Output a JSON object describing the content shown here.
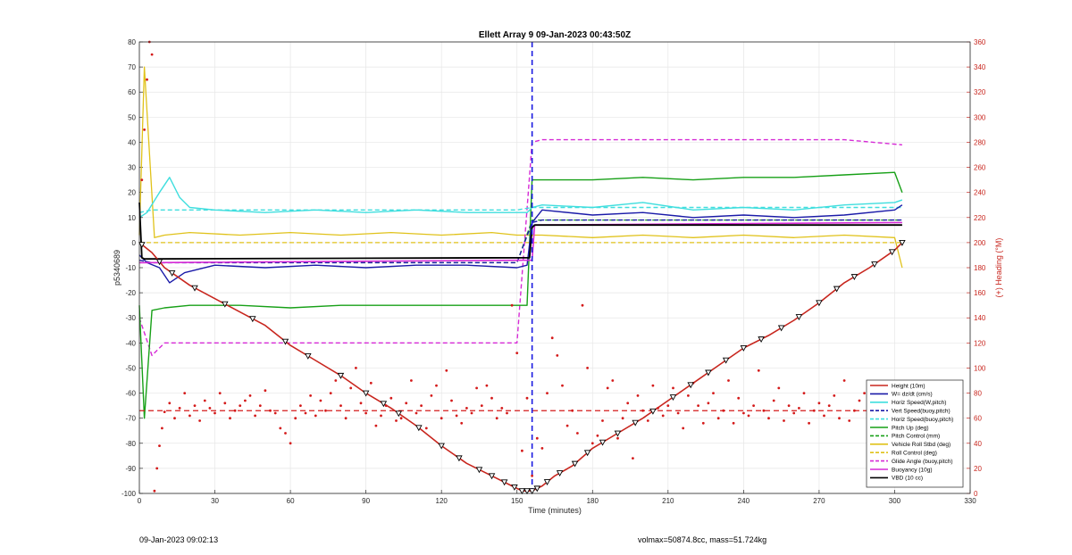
{
  "chart_data": {
    "type": "line",
    "title": "Ellett Array 9 09-Jan-2023 00:43:50Z",
    "xlabel": "Time (minutes)",
    "ylabel": "p5340689",
    "y2label": "(+) Heading (°M)",
    "xlim": [
      0,
      330
    ],
    "ylim": [
      -100,
      80
    ],
    "y2lim": [
      0,
      360
    ],
    "xticks": [
      0,
      30,
      60,
      90,
      120,
      150,
      180,
      210,
      240,
      270,
      300,
      330
    ],
    "yticks": [
      -100,
      -90,
      -80,
      -70,
      -60,
      -50,
      -40,
      -30,
      -20,
      -10,
      0,
      10,
      20,
      30,
      40,
      50,
      60,
      70,
      80
    ],
    "y2ticks": [
      0,
      20,
      40,
      60,
      80,
      100,
      120,
      140,
      160,
      180,
      200,
      220,
      240,
      260,
      280,
      300,
      320,
      340,
      360
    ],
    "grid": true,
    "legend_position": "bottom-right",
    "dive_climb_marker_x": 156,
    "heading_mean_line": 66,
    "colors": {
      "height": "#c8261e",
      "wdzdt": "#1a1aa8",
      "horiz_w": "#3fdede",
      "vert_buoy": "#1a1aa8",
      "horiz_buoy": "#3fdede",
      "pitch": "#17a017",
      "pitch_ctrl": "#17a017",
      "roll": "#e0c21a",
      "roll_ctrl": "#e0c21a",
      "glide": "#d62ad6",
      "buoyancy": "#d62ad6",
      "vbd": "#000000",
      "heading": "#d41a1a",
      "marker": "#1a1ae0"
    },
    "series": [
      {
        "name": "Height (10m)",
        "style": "solid",
        "x": [
          0,
          5,
          10,
          20,
          35,
          50,
          60,
          70,
          80,
          90,
          100,
          110,
          120,
          130,
          140,
          148,
          152,
          156,
          160,
          165,
          172,
          180,
          190,
          200,
          210,
          220,
          230,
          240,
          250,
          260,
          270,
          280,
          290,
          300,
          303
        ],
        "values": [
          0,
          -4,
          -10,
          -17,
          -25,
          -33,
          -41,
          -47,
          -53,
          -60,
          -66,
          -73,
          -81,
          -88,
          -93,
          -97,
          -99,
          -99,
          -97,
          -93,
          -89,
          -82,
          -76,
          -70,
          -63,
          -56,
          -49,
          -42,
          -37,
          -31,
          -24,
          -16,
          -10,
          -3,
          0
        ]
      },
      {
        "name": "W= dz/dt (cm/s)",
        "style": "solid",
        "x": [
          0,
          3,
          8,
          12,
          18,
          30,
          50,
          70,
          90,
          110,
          130,
          150,
          154,
          156,
          160,
          180,
          200,
          220,
          240,
          260,
          280,
          300,
          303
        ],
        "values": [
          -5,
          -8,
          -10,
          -16,
          -12,
          -9,
          -10,
          -9,
          -10,
          -9,
          -9,
          -10,
          -9,
          8,
          13,
          11,
          12,
          10,
          11,
          10,
          11,
          13,
          15
        ]
      },
      {
        "name": "Horiz Speed(W,pitch)",
        "style": "solid",
        "x": [
          0,
          3,
          8,
          12,
          16,
          20,
          30,
          50,
          70,
          90,
          110,
          130,
          150,
          154,
          156,
          160,
          180,
          200,
          220,
          240,
          260,
          280,
          300,
          303
        ],
        "values": [
          10,
          12,
          20,
          26,
          18,
          14,
          13,
          12,
          13,
          12,
          13,
          12,
          12,
          12,
          14,
          15,
          14,
          16,
          13,
          14,
          13,
          15,
          16,
          17
        ]
      },
      {
        "name": "Vert Speed(buoy,pitch)",
        "style": "dashed",
        "x": [
          0,
          5,
          30,
          60,
          90,
          120,
          150,
          156,
          160,
          200,
          240,
          280,
          303
        ],
        "values": [
          -7,
          -8,
          -8,
          -8,
          -8,
          -8,
          -8,
          8,
          9,
          9,
          9,
          9,
          9
        ]
      },
      {
        "name": "Horiz Speed(buoy,pitch)",
        "style": "dashed",
        "x": [
          0,
          5,
          30,
          60,
          90,
          120,
          150,
          156,
          160,
          200,
          240,
          280,
          303
        ],
        "values": [
          12,
          13,
          13,
          13,
          13,
          13,
          13,
          14,
          14,
          14,
          14,
          14,
          14
        ]
      },
      {
        "name": "Pitch Up (deg)",
        "style": "solid",
        "x": [
          0,
          2,
          5,
          10,
          20,
          40,
          60,
          80,
          100,
          120,
          140,
          150,
          154,
          156,
          160,
          180,
          200,
          220,
          240,
          260,
          280,
          300,
          303
        ],
        "values": [
          -25,
          -70,
          -27,
          -26,
          -25,
          -25,
          -26,
          -25,
          -25,
          -25,
          -25,
          -25,
          -25,
          25,
          25,
          25,
          26,
          25,
          26,
          26,
          27,
          28,
          20
        ]
      },
      {
        "name": "Pitch Control (mm)",
        "style": "dashed",
        "x": [
          0,
          5,
          30,
          60,
          90,
          120,
          150,
          156,
          160,
          200,
          240,
          280,
          303
        ],
        "values": [
          -8,
          -8,
          -8,
          -8,
          -8,
          -8,
          -8,
          9,
          9,
          9,
          9,
          9,
          9
        ]
      },
      {
        "name": "Vehicle Roll Stbd (deg)",
        "style": "solid",
        "x": [
          0,
          2,
          6,
          10,
          20,
          40,
          60,
          80,
          100,
          120,
          140,
          150,
          156,
          160,
          180,
          200,
          220,
          240,
          260,
          280,
          300,
          303
        ],
        "values": [
          3,
          70,
          2,
          3,
          4,
          3,
          4,
          3,
          4,
          3,
          4,
          3,
          3,
          3,
          2,
          3,
          2,
          3,
          2,
          3,
          2,
          -10
        ]
      },
      {
        "name": "Roll Control (deg)",
        "style": "dashed",
        "x": [
          0,
          5,
          30,
          60,
          90,
          120,
          150,
          156,
          160,
          200,
          240,
          280,
          303
        ],
        "values": [
          0,
          0,
          0,
          0,
          0,
          0,
          0,
          0,
          0,
          0,
          0,
          0,
          0
        ]
      },
      {
        "name": "Glide Angle (buoy,pitch)",
        "style": "dashed",
        "x": [
          0,
          5,
          10,
          30,
          60,
          90,
          120,
          150,
          156,
          160,
          200,
          240,
          280,
          303
        ],
        "values": [
          -30,
          -45,
          -40,
          -40,
          -40,
          -40,
          -40,
          -40,
          40,
          41,
          41,
          41,
          41,
          39
        ]
      },
      {
        "name": "Buoyancy (10g)",
        "style": "solid",
        "x": [
          0,
          156,
          157,
          303
        ],
        "values": [
          -8,
          -7,
          7,
          8
        ]
      },
      {
        "name": "VBD (10 cc)",
        "style": "solid",
        "x": [
          0,
          1,
          2,
          155,
          156,
          157,
          303
        ],
        "values": [
          16,
          -6,
          -6.5,
          -6,
          6,
          7,
          7
        ]
      }
    ],
    "heading_points": {
      "name": "Heading",
      "x": [
        1,
        2,
        3,
        4,
        5,
        6,
        7,
        8,
        9,
        10,
        12,
        14,
        16,
        18,
        20,
        22,
        24,
        26,
        28,
        30,
        32,
        34,
        36,
        38,
        40,
        42,
        44,
        46,
        48,
        50,
        52,
        54,
        56,
        58,
        60,
        62,
        64,
        66,
        68,
        70,
        72,
        74,
        76,
        78,
        80,
        82,
        84,
        86,
        88,
        90,
        92,
        94,
        96,
        98,
        100,
        102,
        104,
        106,
        108,
        110,
        112,
        114,
        116,
        118,
        120,
        122,
        124,
        126,
        128,
        130,
        132,
        134,
        136,
        138,
        140,
        142,
        144,
        146,
        148,
        150,
        152,
        154,
        156,
        158,
        160,
        162,
        164,
        166,
        168,
        170,
        172,
        174,
        176,
        178,
        180,
        182,
        184,
        186,
        188,
        190,
        192,
        194,
        196,
        198,
        200,
        202,
        204,
        206,
        208,
        210,
        212,
        214,
        216,
        218,
        220,
        222,
        224,
        226,
        228,
        230,
        232,
        234,
        236,
        238,
        240,
        242,
        244,
        246,
        248,
        250,
        252,
        254,
        256,
        258,
        260,
        262,
        264,
        266,
        268,
        270,
        272,
        274,
        276,
        278,
        280,
        282,
        284,
        286,
        288,
        290,
        292,
        294,
        296,
        298,
        300
      ],
      "values": [
        250,
        290,
        330,
        360,
        350,
        2,
        20,
        38,
        52,
        65,
        72,
        60,
        68,
        80,
        62,
        70,
        58,
        74,
        68,
        64,
        80,
        72,
        60,
        66,
        70,
        74,
        78,
        62,
        70,
        82,
        66,
        64,
        52,
        48,
        40,
        60,
        70,
        64,
        78,
        62,
        74,
        66,
        80,
        90,
        70,
        60,
        84,
        100,
        72,
        64,
        88,
        54,
        62,
        70,
        76,
        58,
        60,
        72,
        90,
        64,
        70,
        52,
        78,
        86,
        60,
        98,
        74,
        62,
        56,
        68,
        64,
        84,
        70,
        86,
        76,
        60,
        68,
        64,
        150,
        112,
        34,
        76,
        14,
        44,
        36,
        80,
        124,
        110,
        86,
        54,
        66,
        48,
        150,
        100,
        40,
        46,
        58,
        84,
        90,
        44,
        60,
        72,
        28,
        78,
        66,
        58,
        86,
        68,
        62,
        70,
        84,
        64,
        52,
        78,
        88,
        70,
        56,
        72,
        80,
        60,
        66,
        90,
        56,
        76,
        64,
        62,
        70,
        98,
        66,
        60,
        74,
        84,
        58,
        70,
        64,
        68,
        80,
        56,
        66,
        72,
        62,
        70,
        78,
        60,
        90,
        58,
        66,
        74,
        80,
        56,
        60,
        70,
        64,
        66,
        68
      ]
    },
    "height_markers_x": [
      1,
      8,
      13,
      22,
      34,
      45,
      58,
      67,
      80,
      90,
      97,
      103,
      111,
      120,
      127,
      135,
      140,
      145,
      149,
      152,
      154,
      156,
      158,
      162,
      167,
      173,
      178,
      184,
      190,
      197,
      204,
      212,
      219,
      226,
      233,
      240,
      247,
      255,
      262,
      270,
      277,
      284,
      292,
      299,
      303
    ]
  },
  "footer": {
    "left": "09-Jan-2023 09:02:13",
    "right": "volmax=50874.8cc, mass=51.724kg"
  }
}
